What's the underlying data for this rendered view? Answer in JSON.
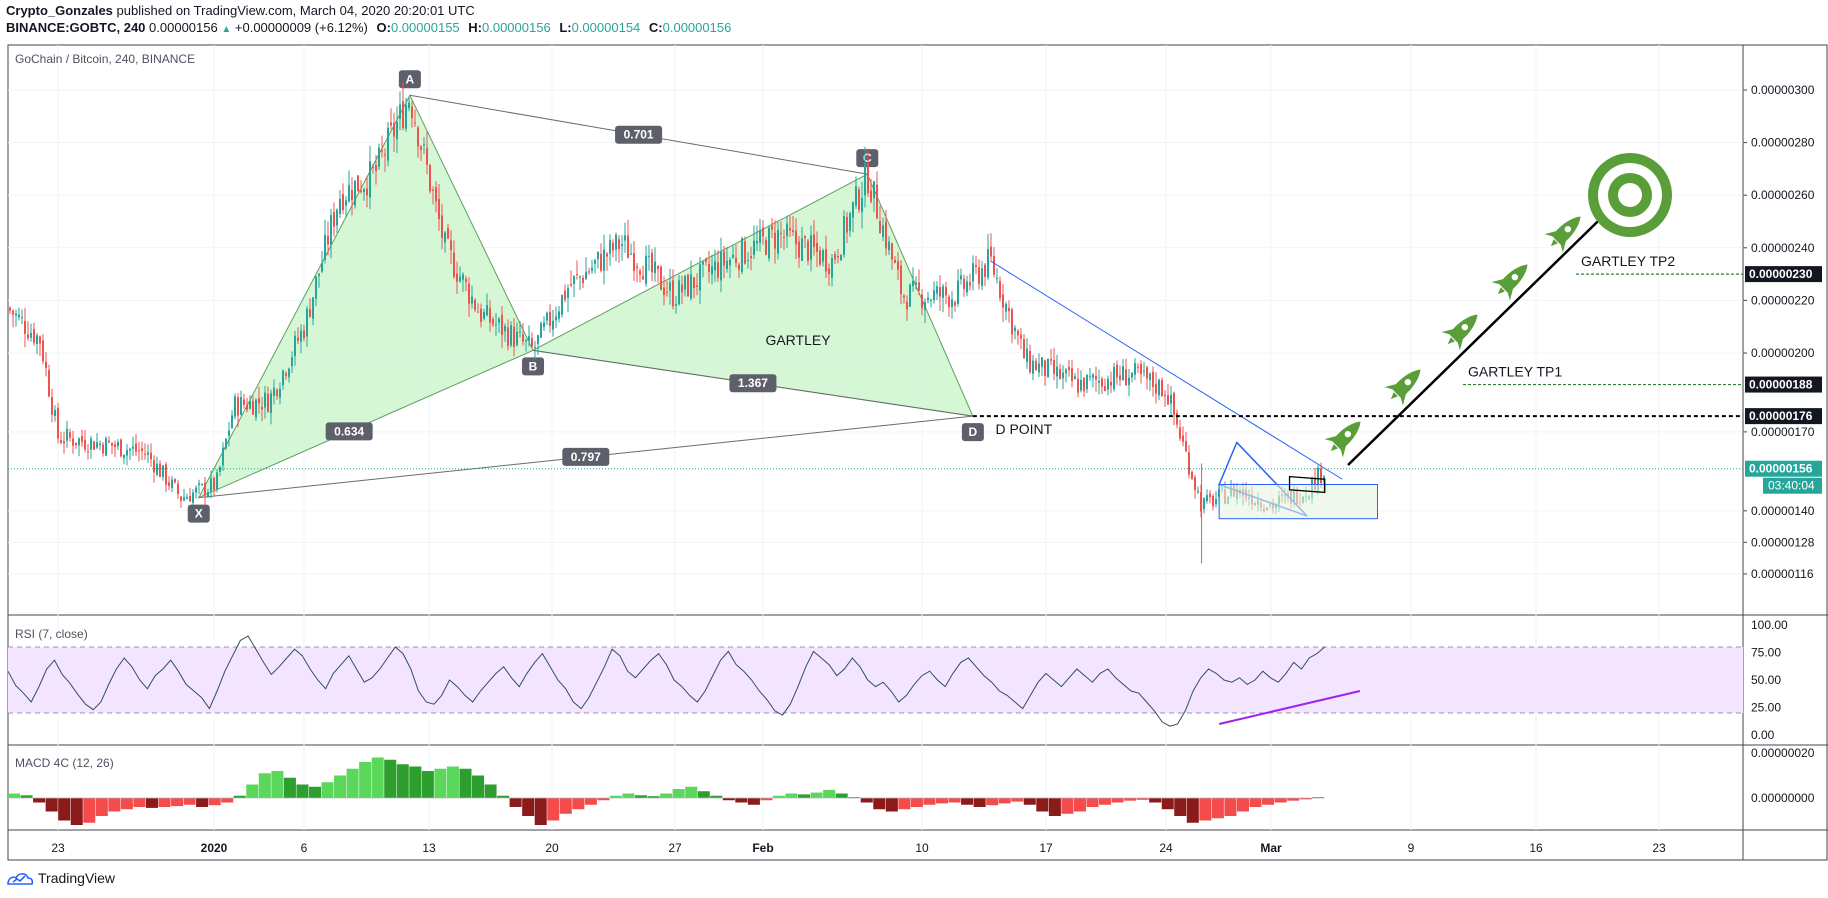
{
  "header": {
    "author": "Crypto_Gonzales",
    "published_text": "published on TradingView.com, March 04, 2020 20:20:01 UTC",
    "symbol": "BINANCE:GOBTC, 240",
    "last": "0.00000156",
    "change_arrow": "▲",
    "change": "+0.00000009 (+6.12%)",
    "o_label": "O:",
    "o": "0.00000155",
    "h_label": "H:",
    "h": "0.00000156",
    "l_label": "L:",
    "l": "0.00000154",
    "c_label": "C:",
    "c": "0.00000156"
  },
  "legends": {
    "main": "GoChain / Bitcoin, 240, BINANCE",
    "rsi": "RSI (7, close)",
    "macd": "MACD 4C (12, 26)"
  },
  "brand": "TradingView",
  "colors": {
    "bull": "#26a69a",
    "bear": "#ef5350",
    "candle_up": "#26a69a",
    "candle_down": "#ef5350",
    "gartley_fill": "#ccf5cc",
    "trendline": "#2962ff",
    "rsi_line": "#2f4f5f",
    "rsi_band": "#f3e5ff",
    "rsi_trend": "#a020f0",
    "rocket": "#5a9e3a",
    "target": "#5a9e3a",
    "last_price_bg": "#26a69a",
    "level_bg": "#131722"
  },
  "chart_data": [
    {
      "type": "candlestick",
      "x_ticks": [
        "23",
        "2020",
        "6",
        "13",
        "20",
        "27",
        "Feb",
        "10",
        "17",
        "24",
        "Mar",
        "9",
        "16",
        "23"
      ],
      "y_ticks": [
        "0.00000300",
        "0.00000280",
        "0.00000260",
        "0.00000240",
        "0.00000220",
        "0.00000200",
        "0.00000170",
        "0.00000140",
        "0.00000128",
        "0.00000116"
      ],
      "y_tick_values": [
        300,
        280,
        260,
        240,
        220,
        200,
        170,
        140,
        128,
        116
      ],
      "price_scale_unit": "1e-8 BTC",
      "ylim": [
        104,
        320
      ],
      "price_path": [
        {
          "date": "2019-12-20",
          "price": 218
        },
        {
          "date": "2019-12-22",
          "price": 205
        },
        {
          "date": "2019-12-23",
          "price": 168
        },
        {
          "date": "2019-12-26",
          "price": 165
        },
        {
          "date": "2019-12-28",
          "price": 162
        },
        {
          "date": "2019-12-30",
          "price": 145
        },
        {
          "date": "2020-01-01",
          "price": 150
        },
        {
          "date": "2020-01-02",
          "price": 180
        },
        {
          "date": "2020-01-04",
          "price": 182
        },
        {
          "date": "2020-01-06",
          "price": 210
        },
        {
          "date": "2020-01-08",
          "price": 260
        },
        {
          "date": "2020-01-10",
          "price": 268
        },
        {
          "date": "2020-01-12",
          "price": 298
        },
        {
          "date": "2020-01-14",
          "price": 240
        },
        {
          "date": "2020-01-16",
          "price": 215
        },
        {
          "date": "2020-01-19",
          "price": 201
        },
        {
          "date": "2020-01-21",
          "price": 225
        },
        {
          "date": "2020-01-24",
          "price": 242
        },
        {
          "date": "2020-01-27",
          "price": 222
        },
        {
          "date": "2020-01-30",
          "price": 235
        },
        {
          "date": "2020-02-02",
          "price": 245
        },
        {
          "date": "2020-02-05",
          "price": 235
        },
        {
          "date": "2020-02-07",
          "price": 268
        },
        {
          "date": "2020-02-09",
          "price": 222
        },
        {
          "date": "2020-02-12",
          "price": 222
        },
        {
          "date": "2020-02-14",
          "price": 235
        },
        {
          "date": "2020-02-16",
          "price": 197
        },
        {
          "date": "2020-02-19",
          "price": 188
        },
        {
          "date": "2020-02-22",
          "price": 192
        },
        {
          "date": "2020-02-24",
          "price": 186
        },
        {
          "date": "2020-02-26",
          "price": 142
        },
        {
          "date": "2020-02-28",
          "price": 148
        },
        {
          "date": "2020-03-01",
          "price": 142
        },
        {
          "date": "2020-03-03",
          "price": 148
        },
        {
          "date": "2020-03-04",
          "price": 156
        }
      ],
      "gartley": {
        "label": "GARTLEY",
        "points": [
          {
            "name": "X",
            "date": "2019-12-31",
            "price": 145
          },
          {
            "name": "A",
            "date": "2020-01-12",
            "price": 298
          },
          {
            "name": "B",
            "date": "2020-01-19",
            "price": 201
          },
          {
            "name": "C",
            "date": "2020-02-07",
            "price": 268
          },
          {
            "name": "D",
            "date": "2020-02-13",
            "price": 176
          }
        ],
        "ratios": {
          "XA_B": "0.634",
          "AC": "0.701",
          "BD": "1.367",
          "XD": "0.797"
        }
      },
      "levels": [
        {
          "name": "GARTLEY TP2",
          "price": 230,
          "price_label": "0.00000230"
        },
        {
          "name": "GARTLEY TP1",
          "price": 188,
          "price_label": "0.00000188"
        },
        {
          "name": "D POINT",
          "price": 176,
          "price_label": "0.00000176"
        }
      ],
      "last_price": {
        "price": 156,
        "price_label": "0.00000156",
        "countdown": "03:40:04"
      }
    },
    {
      "type": "line",
      "name": "RSI (7, close)",
      "y_ticks": [
        "100.00",
        "75.00",
        "50.00",
        "25.00",
        "0.00"
      ],
      "ylim": [
        0,
        100
      ],
      "band": [
        20,
        80
      ],
      "rsi_trend": {
        "from": {
          "date": "2020-02-27",
          "value": 10
        },
        "to": {
          "date": "2020-03-06",
          "value": 40
        }
      },
      "values": [
        58,
        45,
        38,
        30,
        44,
        60,
        68,
        55,
        47,
        37,
        28,
        23,
        30,
        46,
        60,
        70,
        62,
        50,
        42,
        54,
        60,
        68,
        58,
        46,
        40,
        34,
        24,
        40,
        58,
        72,
        86,
        90,
        78,
        66,
        55,
        62,
        70,
        78,
        72,
        60,
        50,
        42,
        56,
        64,
        72,
        60,
        48,
        52,
        60,
        70,
        80,
        74,
        60,
        40,
        30,
        28,
        36,
        50,
        44,
        36,
        30,
        40,
        48,
        56,
        62,
        52,
        44,
        56,
        66,
        74,
        62,
        50,
        42,
        30,
        24,
        34,
        48,
        62,
        78,
        72,
        58,
        52,
        60,
        68,
        74,
        64,
        50,
        44,
        36,
        30,
        40,
        54,
        68,
        76,
        64,
        58,
        50,
        40,
        32,
        22,
        18,
        28,
        44,
        62,
        76,
        70,
        64,
        54,
        60,
        70,
        62,
        50,
        44,
        48,
        40,
        30,
        36,
        46,
        54,
        58,
        50,
        44,
        56,
        66,
        70,
        62,
        54,
        48,
        40,
        36,
        30,
        24,
        36,
        48,
        56,
        50,
        44,
        52,
        60,
        54,
        48,
        56,
        60,
        52,
        46,
        40,
        38,
        30,
        22,
        12,
        8,
        10,
        22,
        40,
        52,
        60,
        56,
        50,
        48,
        52,
        46,
        50,
        58,
        52,
        48,
        56,
        66,
        60,
        70,
        74,
        80
      ]
    },
    {
      "type": "bar",
      "name": "MACD 4C (12, 26)",
      "y_ticks": [
        "0.00000020",
        "0.00000000"
      ],
      "ylim": [
        -6,
        12
      ],
      "values": [
        1,
        0.6,
        -1,
        -3,
        -5,
        -6,
        -5.5,
        -4,
        -3,
        -2.5,
        -2,
        -2.2,
        -2,
        -1.8,
        -1.5,
        -2,
        -1.6,
        -1,
        0.5,
        3,
        5.5,
        6,
        4.5,
        3,
        2.5,
        3.5,
        5,
        6.5,
        8,
        9,
        8.5,
        7.5,
        7,
        6,
        6.5,
        7,
        6.5,
        5,
        3,
        0.5,
        -2,
        -4,
        -6,
        -5,
        -3.5,
        -2.5,
        -1.5,
        -0.5,
        0.5,
        1,
        0.6,
        0.4,
        1,
        2,
        2.5,
        1.5,
        0.5,
        -0.5,
        -1,
        -1.5,
        -0.5,
        0.5,
        1,
        0.8,
        1.2,
        1.8,
        1,
        0.2,
        -1,
        -2.5,
        -3,
        -2.5,
        -2,
        -1.5,
        -1.2,
        -1,
        -1.5,
        -2,
        -1.6,
        -1.2,
        -0.8,
        -1.5,
        -3,
        -4,
        -3.5,
        -3,
        -2,
        -1.5,
        -1,
        -0.6,
        -0.4,
        -1,
        -2.5,
        -4,
        -5.5,
        -5,
        -4.5,
        -4,
        -3,
        -2,
        -1.5,
        -1,
        -0.6,
        -0.3,
        0.2
      ]
    }
  ]
}
